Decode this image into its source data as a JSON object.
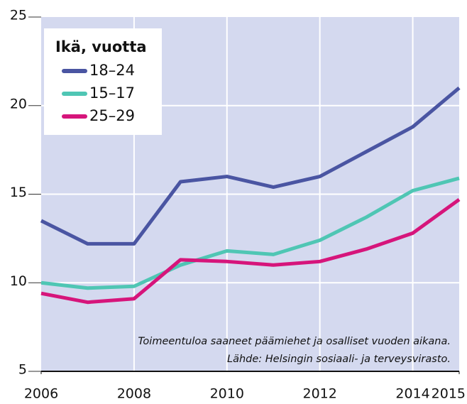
{
  "chart_data": {
    "type": "line",
    "legend_title": "Ikä, vuotta",
    "annotations": [
      "Toimeentuloa saaneet päämiehet ja osalliset vuoden aikana.",
      "Lähde: Helsingin sosiaali- ja terveysvirasto."
    ],
    "x": [
      2006,
      2007,
      2008,
      2009,
      2010,
      2011,
      2012,
      2013,
      2014,
      2015
    ],
    "series": [
      {
        "name": "18–24",
        "color": "#4a55a2",
        "values": [
          13.5,
          12.2,
          12.2,
          15.7,
          16.0,
          15.4,
          16.0,
          17.4,
          18.8,
          21.0
        ]
      },
      {
        "name": "15–17",
        "color": "#4fc6b4",
        "values": [
          10.0,
          9.7,
          9.8,
          11.0,
          11.8,
          11.6,
          12.4,
          13.7,
          15.2,
          15.9
        ]
      },
      {
        "name": "25–29",
        "color": "#d6157b",
        "values": [
          9.4,
          8.9,
          9.1,
          11.3,
          11.2,
          11.0,
          11.2,
          11.9,
          12.8,
          14.7
        ]
      }
    ],
    "xlim": [
      2006,
      2015
    ],
    "xticks": [
      2006,
      2008,
      2010,
      2012,
      2014,
      2015
    ],
    "ylim": [
      5,
      25
    ],
    "yticks": [
      5,
      10,
      15,
      20,
      25
    ],
    "grid": true,
    "legend": "upper left",
    "background": "#d4d9ef"
  }
}
